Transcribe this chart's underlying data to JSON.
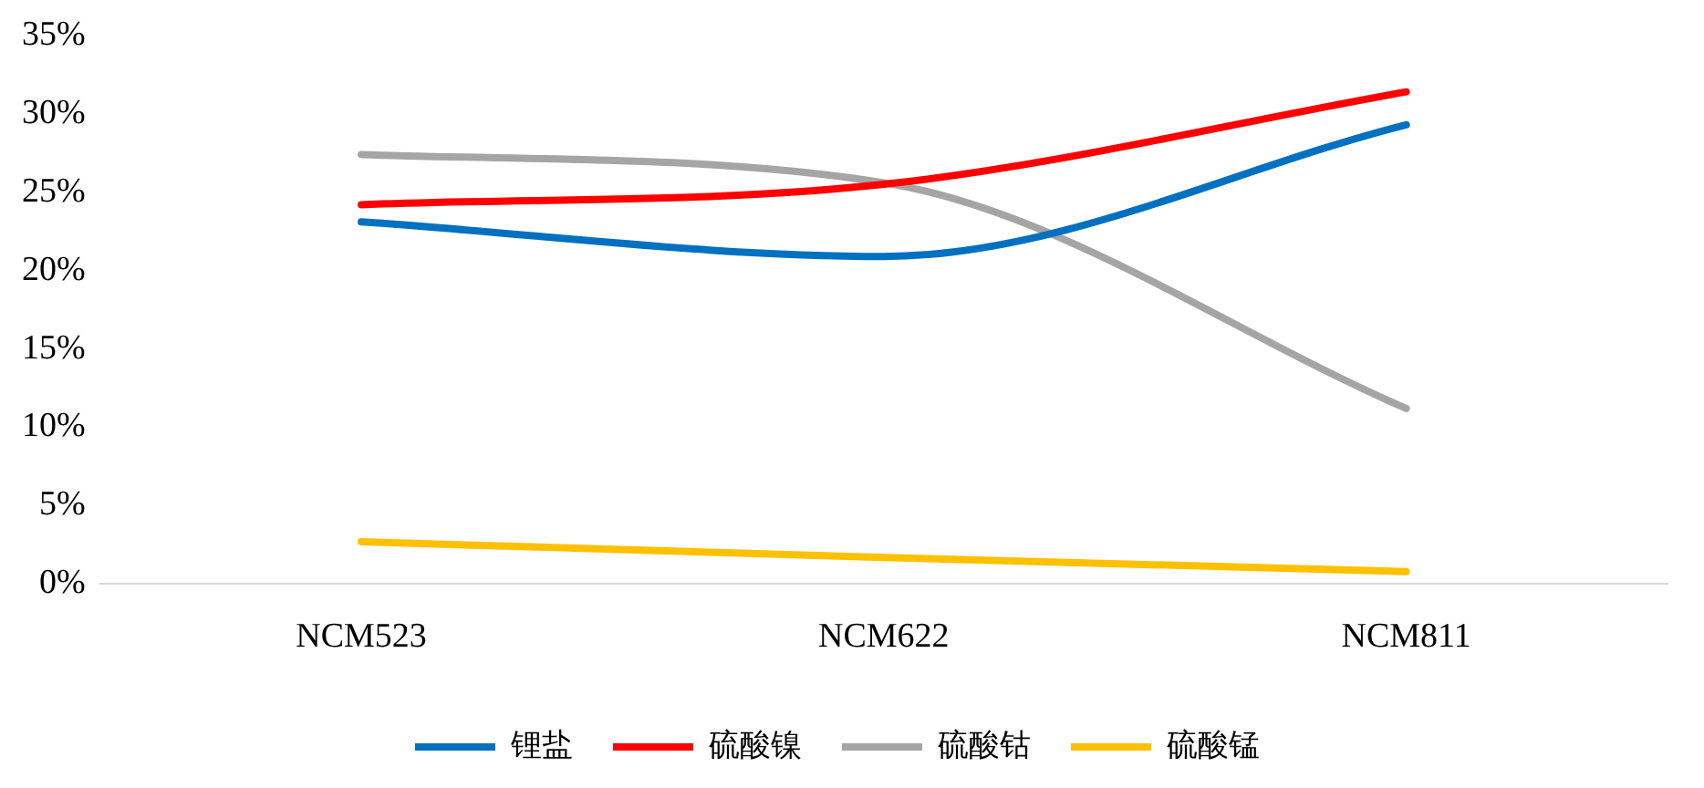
{
  "chart_data": {
    "type": "line",
    "categories": [
      "NCM523",
      "NCM622",
      "NCM811"
    ],
    "series": [
      {
        "name": "锂盐",
        "color": "#0070c0",
        "values": [
          23.1,
          20.9,
          29.3
        ]
      },
      {
        "name": "硫酸镍",
        "color": "#ff0000",
        "values": [
          24.2,
          25.5,
          31.4
        ]
      },
      {
        "name": "硫酸钴",
        "color": "#a5a5a5",
        "values": [
          27.4,
          25.6,
          11.2
        ]
      },
      {
        "name": "硫酸锰",
        "color": "#ffc000",
        "values": [
          2.7,
          1.7,
          0.8
        ]
      }
    ],
    "ylim": [
      0,
      35
    ],
    "yticks": [
      {
        "value": 0,
        "label": "0%"
      },
      {
        "value": 5,
        "label": "5%"
      },
      {
        "value": 10,
        "label": "10%"
      },
      {
        "value": 15,
        "label": "15%"
      },
      {
        "value": 20,
        "label": "20%"
      },
      {
        "value": 25,
        "label": "25%"
      },
      {
        "value": 30,
        "label": "30%"
      },
      {
        "value": 35,
        "label": "35%"
      }
    ],
    "grid": false,
    "legend": "bottom",
    "marker": "none",
    "line_style": "solid"
  }
}
